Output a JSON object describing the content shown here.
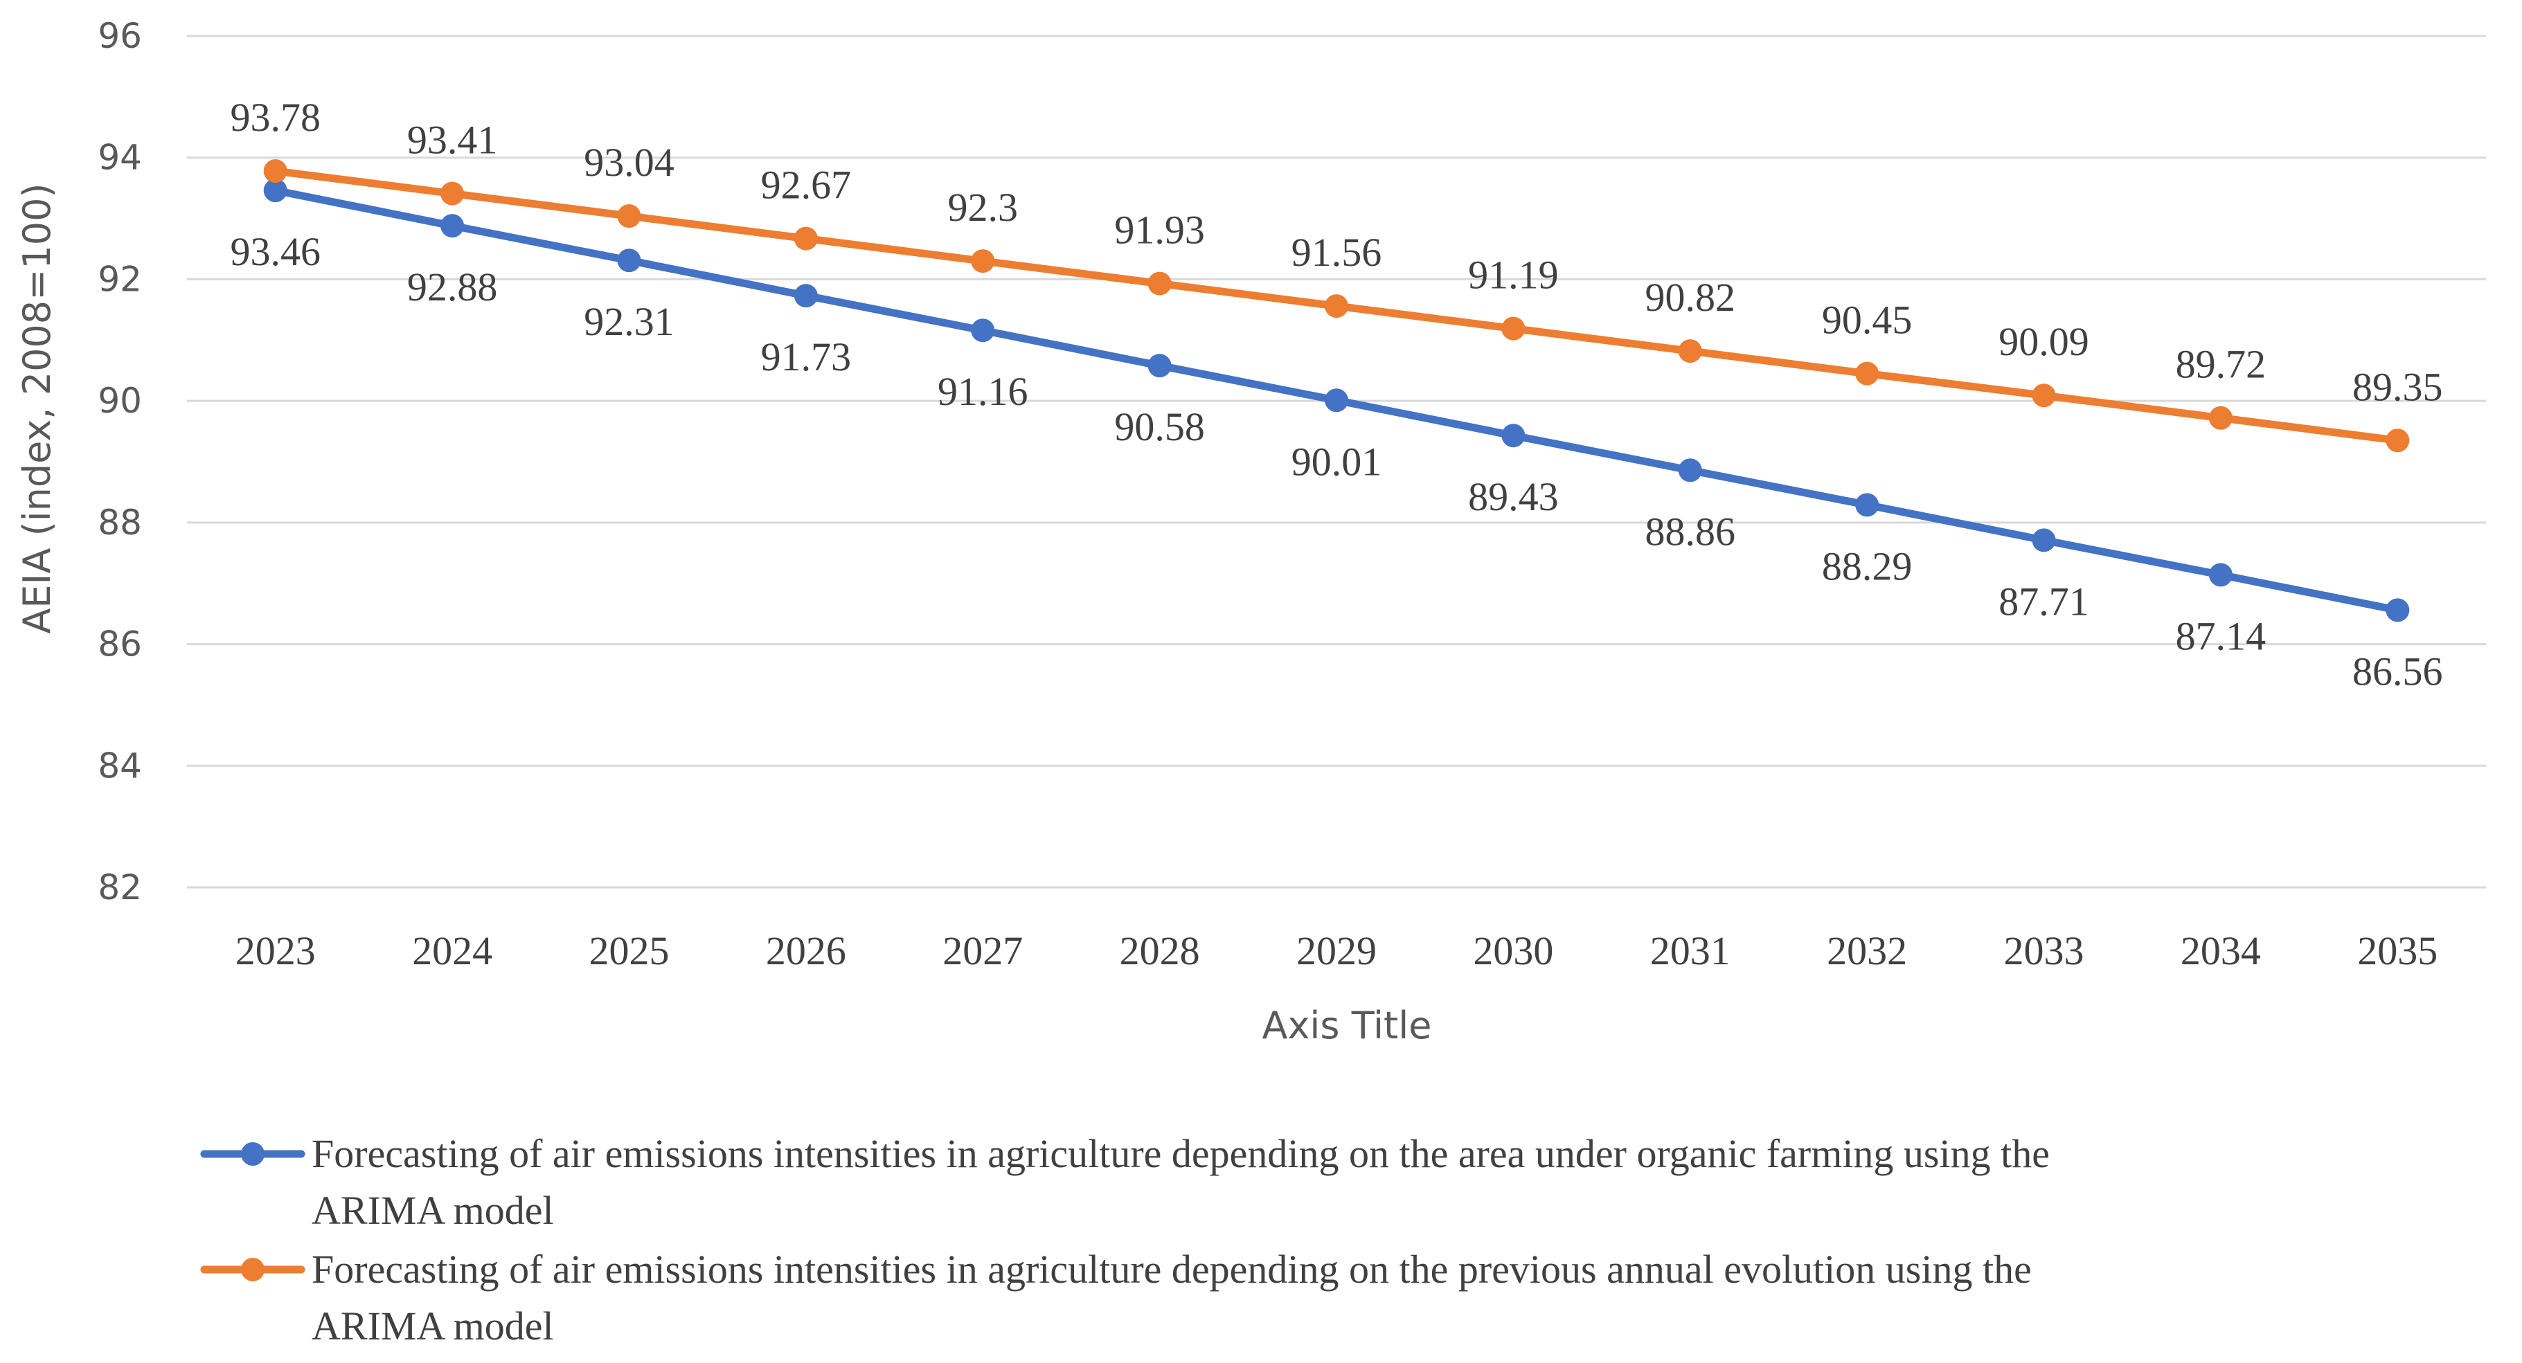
{
  "chart_data": {
    "type": "line",
    "title": "",
    "xlabel": "Axis Title",
    "ylabel": "AEIA (index, 2008=100)",
    "ylim": [
      82,
      96
    ],
    "yticks": [
      "82",
      "84",
      "86",
      "88",
      "90",
      "92",
      "94",
      "96"
    ],
    "grid": true,
    "legend_position": "bottom",
    "categories": [
      "2023",
      "2024",
      "2025",
      "2026",
      "2027",
      "2028",
      "2029",
      "2030",
      "2031",
      "2032",
      "2033",
      "2034",
      "2035"
    ],
    "series": [
      {
        "name": "Forecasting of air emissions intensities in agriculture depending on the area under organic farming using the ARIMA model",
        "legend_lines": [
          "Forecasting of air emissions intensities in agriculture depending on the area under organic farming using the",
          "ARIMA model"
        ],
        "color": "#4472C4",
        "label_position": "below",
        "values": [
          93.46,
          92.88,
          92.31,
          91.73,
          91.16,
          90.58,
          90.01,
          89.43,
          88.86,
          88.29,
          87.71,
          87.14,
          86.56
        ],
        "labels": [
          "93.46",
          "92.88",
          "92.31",
          "91.73",
          "91.16",
          "90.58",
          "90.01",
          "89.43",
          "88.86",
          "88.29",
          "87.71",
          "87.14",
          "86.56"
        ]
      },
      {
        "name": "Forecasting of air emissions intensities in agriculture depending on the previous annual evolution using the ARIMA model",
        "legend_lines": [
          "Forecasting of air emissions intensities in agriculture depending on the previous annual evolution using the",
          "ARIMA model"
        ],
        "color": "#ED7D31",
        "label_position": "above",
        "values": [
          93.78,
          93.41,
          93.04,
          92.67,
          92.3,
          91.93,
          91.56,
          91.19,
          90.82,
          90.45,
          90.09,
          89.72,
          89.35
        ],
        "labels": [
          "93.78",
          "93.41",
          "93.04",
          "92.67",
          "92.3",
          "91.93",
          "91.56",
          "91.19",
          "90.82",
          "90.45",
          "90.09",
          "89.72",
          "89.35"
        ]
      }
    ]
  }
}
